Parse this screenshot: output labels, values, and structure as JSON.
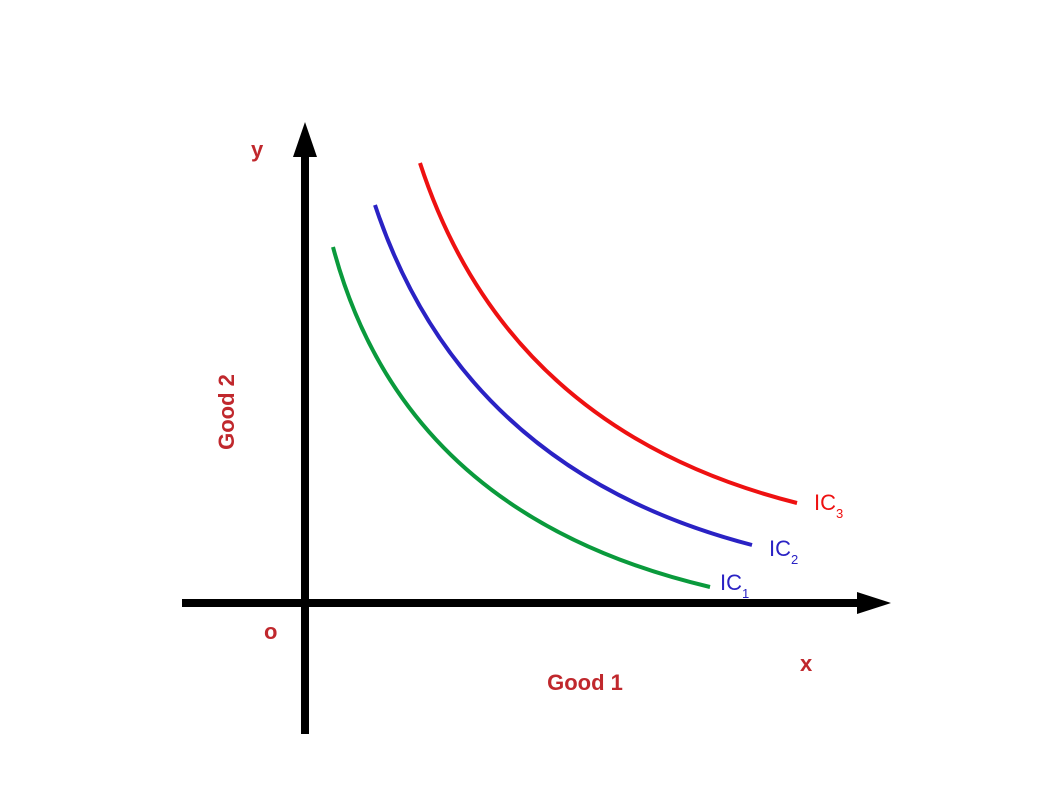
{
  "colors": {
    "axis": "#000000",
    "label": "#c0282d",
    "ic1": "#0a9a3c",
    "ic2": "#2a22c4",
    "ic3": "#ee1111",
    "ic1_label": "#2a22c4",
    "ic2_label": "#2a22c4",
    "ic3_label": "#ee1111"
  },
  "labels": {
    "y_letter": "y",
    "x_letter": "x",
    "origin": "o",
    "y_title": "Good 2",
    "x_title": "Good 1"
  },
  "curves": [
    {
      "id": "ic1",
      "base": "IC",
      "sub": "1"
    },
    {
      "id": "ic2",
      "base": "IC",
      "sub": "2"
    },
    {
      "id": "ic3",
      "base": "IC",
      "sub": "3"
    }
  ]
}
